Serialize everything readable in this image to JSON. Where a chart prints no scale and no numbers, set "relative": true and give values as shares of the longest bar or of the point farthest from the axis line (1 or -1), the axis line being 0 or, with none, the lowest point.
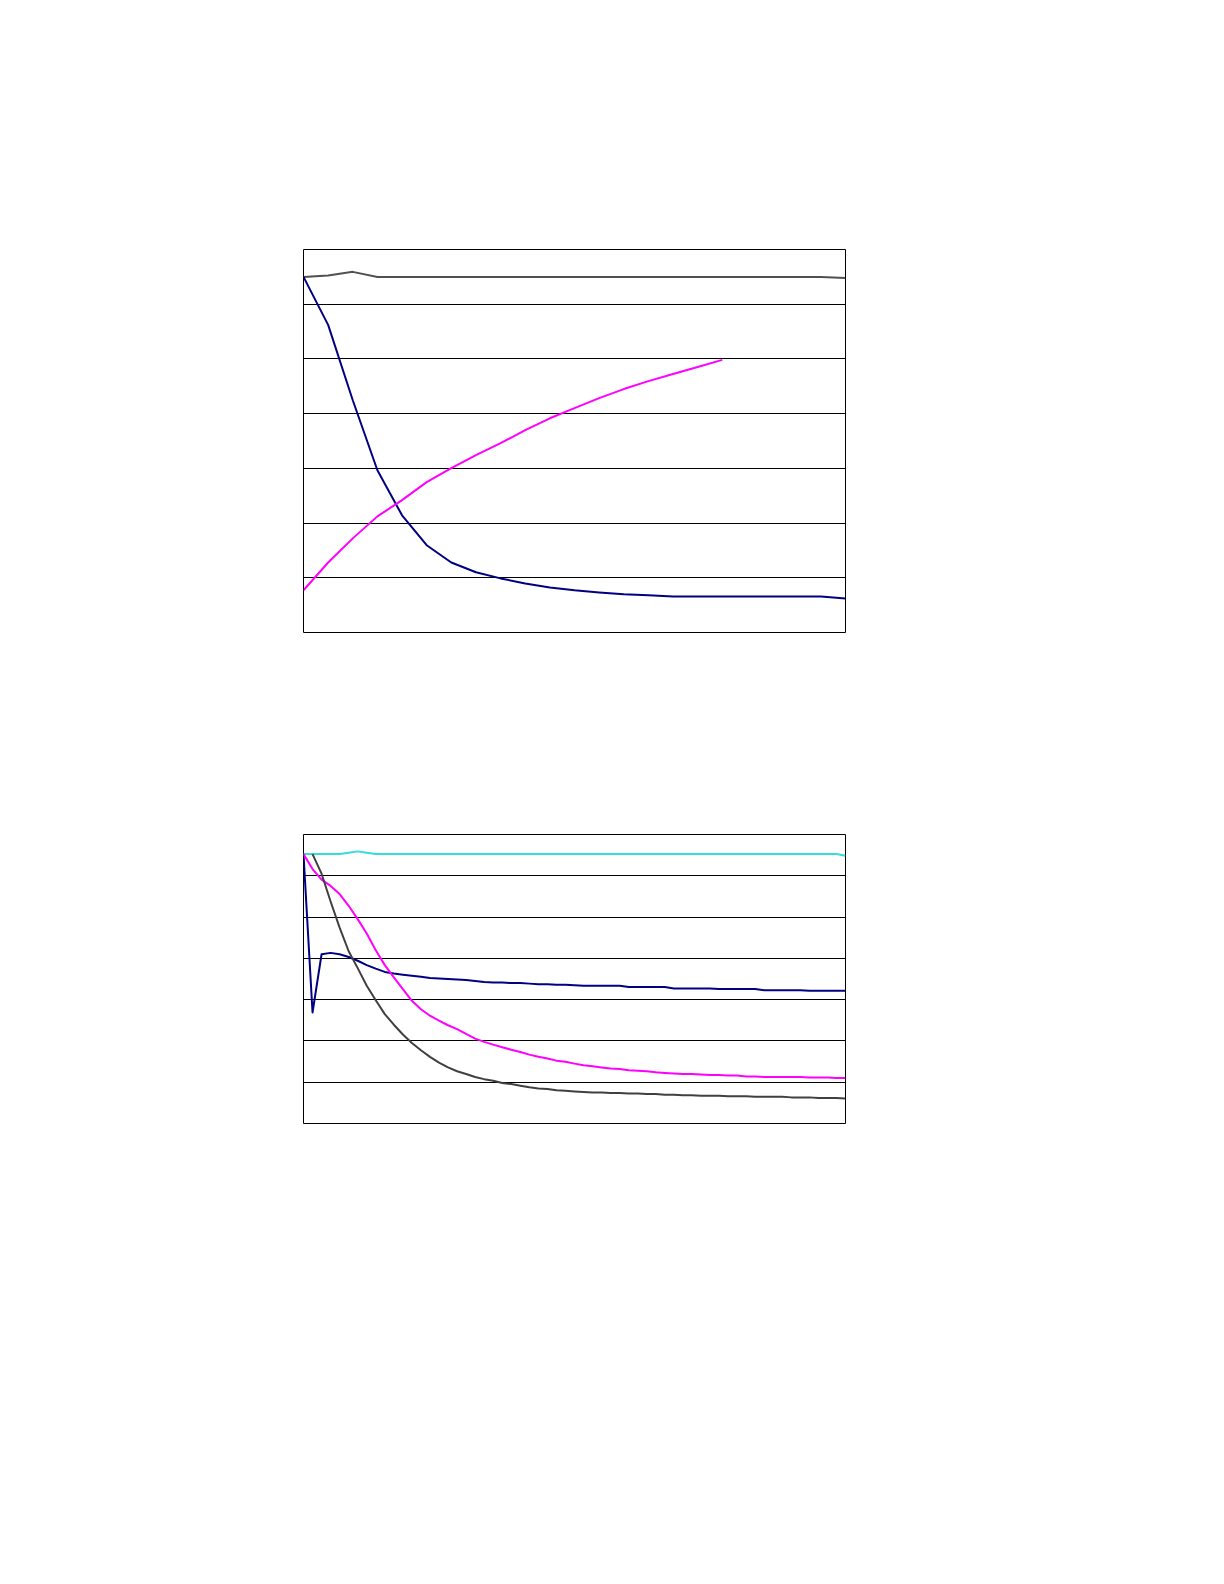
{
  "chart_data": [
    {
      "type": "line",
      "relative": true,
      "grid": "y",
      "categories": [
        null,
        null,
        null,
        null,
        null,
        null,
        null,
        null,
        null,
        null,
        null,
        null,
        null,
        null,
        null,
        null,
        null,
        null,
        null,
        null,
        null,
        null,
        null
      ],
      "series": [
        {
          "color": "#505050",
          "values": [
            0.986,
            0.99,
            1.0,
            0.986,
            0.986,
            0.986,
            0.986,
            0.986,
            0.986,
            0.986,
            0.986,
            0.986,
            0.986,
            0.986,
            0.986,
            0.986,
            0.986,
            0.986,
            0.986,
            0.986,
            0.986,
            0.986,
            0.983
          ]
        },
        {
          "color": "#000080",
          "values": [
            0.986,
            0.853,
            0.644,
            0.45,
            0.325,
            0.242,
            0.194,
            0.167,
            0.15,
            0.136,
            0.125,
            0.117,
            0.111,
            0.106,
            0.103,
            0.1,
            0.1,
            0.1,
            0.1,
            0.1,
            0.1,
            0.1,
            0.094
          ]
        },
        {
          "color": "#ff00ff",
          "values": [
            0.117,
            0.194,
            0.261,
            0.322,
            0.367,
            0.417,
            0.456,
            0.492,
            0.525,
            0.561,
            0.594,
            0.622,
            0.65,
            0.675,
            0.697,
            0.717,
            0.736,
            0.756,
            null,
            null,
            null,
            null,
            null
          ]
        }
      ]
    },
    {
      "type": "line",
      "relative": true,
      "grid": "y",
      "categories": [
        null,
        null,
        null,
        null,
        null,
        null,
        null,
        null,
        null,
        null,
        null,
        null,
        null,
        null,
        null,
        null,
        null,
        null,
        null,
        null,
        null,
        null,
        null,
        null,
        null,
        null,
        null,
        null,
        null,
        null,
        null,
        null,
        null,
        null,
        null,
        null,
        null,
        null,
        null,
        null,
        null,
        null,
        null,
        null,
        null,
        null,
        null,
        null,
        null,
        null,
        null,
        null,
        null,
        null,
        null,
        null,
        null,
        null,
        null,
        null,
        null
      ],
      "series": [
        {
          "color": "#33dddd",
          "values": [
            0.99,
            0.99,
            0.99,
            0.99,
            0.99,
            0.995,
            1.0,
            0.995,
            0.99,
            0.99,
            0.99,
            0.99,
            0.99,
            0.99,
            0.99,
            0.99,
            0.99,
            0.99,
            0.99,
            0.99,
            0.99,
            0.99,
            0.99,
            0.99,
            0.99,
            0.99,
            0.99,
            0.99,
            0.99,
            0.99,
            0.99,
            0.99,
            0.99,
            0.99,
            0.99,
            0.99,
            0.99,
            0.99,
            0.99,
            0.99,
            0.99,
            0.99,
            0.99,
            0.99,
            0.99,
            0.99,
            0.99,
            0.99,
            0.99,
            0.99,
            0.99,
            0.99,
            0.99,
            0.99,
            0.99,
            0.99,
            0.99,
            0.99,
            0.99,
            0.99,
            0.984
          ]
        },
        {
          "color": "#000080",
          "values": [
            0.99,
            0.408,
            0.622,
            0.627,
            0.622,
            0.612,
            0.598,
            0.582,
            0.569,
            0.557,
            0.551,
            0.547,
            0.543,
            0.539,
            0.535,
            0.533,
            0.531,
            0.529,
            0.527,
            0.524,
            0.52,
            0.518,
            0.518,
            0.516,
            0.516,
            0.514,
            0.512,
            0.512,
            0.51,
            0.51,
            0.508,
            0.506,
            0.506,
            0.506,
            0.506,
            0.506,
            0.502,
            0.502,
            0.502,
            0.502,
            0.502,
            0.496,
            0.496,
            0.496,
            0.496,
            0.496,
            0.494,
            0.494,
            0.494,
            0.494,
            0.494,
            0.49,
            0.49,
            0.49,
            0.49,
            0.49,
            0.488,
            0.488,
            0.488,
            0.488,
            0.488
          ]
        },
        {
          "color": "#ff00ff",
          "values": [
            0.99,
            0.935,
            0.896,
            0.873,
            0.843,
            0.8,
            0.751,
            0.698,
            0.637,
            0.582,
            0.537,
            0.494,
            0.451,
            0.42,
            0.396,
            0.378,
            0.361,
            0.347,
            0.329,
            0.312,
            0.3,
            0.29,
            0.28,
            0.271,
            0.263,
            0.253,
            0.245,
            0.239,
            0.231,
            0.227,
            0.22,
            0.214,
            0.21,
            0.206,
            0.202,
            0.2,
            0.196,
            0.194,
            0.192,
            0.188,
            0.186,
            0.184,
            0.182,
            0.182,
            0.18,
            0.178,
            0.178,
            0.176,
            0.176,
            0.173,
            0.173,
            0.171,
            0.171,
            0.171,
            0.171,
            0.171,
            0.169,
            0.169,
            0.169,
            0.167,
            0.167
          ]
        },
        {
          "color": "#404040",
          "values": [
            null,
            0.99,
            0.918,
            0.816,
            0.72,
            0.633,
            0.571,
            0.506,
            0.453,
            0.402,
            0.363,
            0.327,
            0.296,
            0.269,
            0.245,
            0.224,
            0.206,
            0.192,
            0.182,
            0.171,
            0.163,
            0.157,
            0.149,
            0.145,
            0.139,
            0.133,
            0.129,
            0.127,
            0.122,
            0.12,
            0.118,
            0.116,
            0.114,
            0.114,
            0.112,
            0.112,
            0.11,
            0.11,
            0.108,
            0.108,
            0.106,
            0.106,
            0.104,
            0.104,
            0.102,
            0.102,
            0.102,
            0.1,
            0.1,
            0.1,
            0.098,
            0.098,
            0.098,
            0.098,
            0.096,
            0.096,
            0.096,
            0.094,
            0.094,
            0.094,
            0.092
          ]
        }
      ]
    }
  ]
}
